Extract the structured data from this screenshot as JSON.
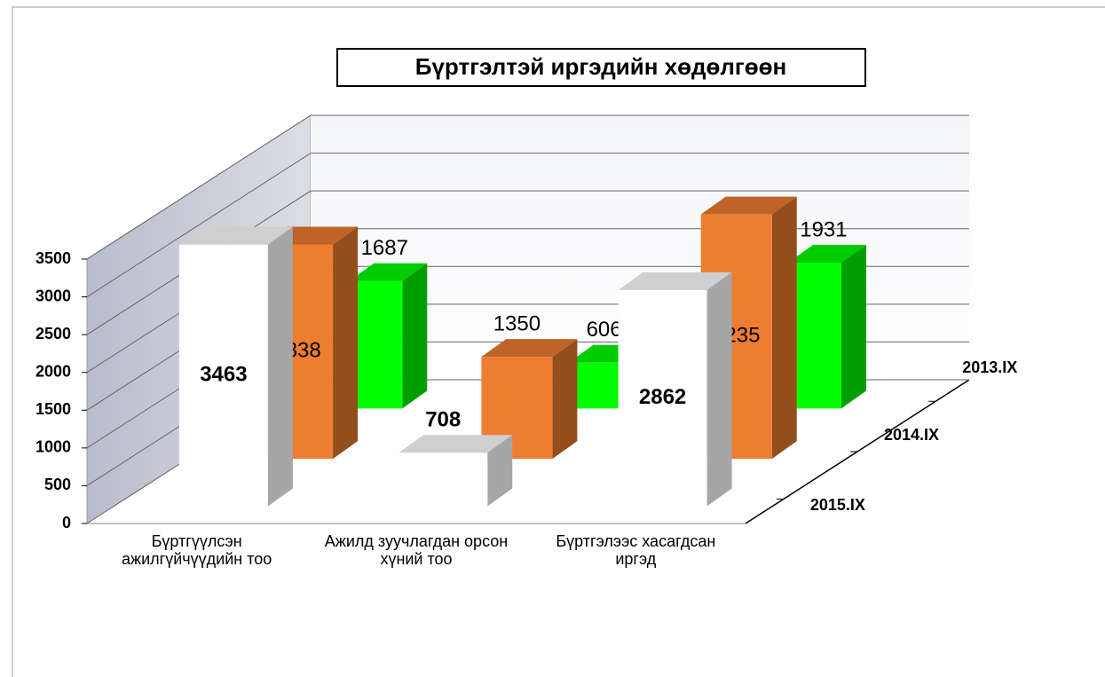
{
  "chart_data": {
    "type": "bar3d",
    "title": "Бүртгэлтэй иргэдийн хөдөлгөөн",
    "categories": [
      "Бүртгүүлсэн ажилгүйчүүдийн тоо",
      "Ажилд зуучлагдан орсон хүний тоо",
      "Бүртгэлээс хасагдсан иргэд"
    ],
    "series": [
      {
        "name": "2015.IX",
        "color": "#ffffff",
        "values": [
          3463,
          708,
          2862
        ]
      },
      {
        "name": "2014.IX",
        "color": "#ed7d31",
        "values": [
          2838,
          1350,
          3235
        ]
      },
      {
        "name": "2013.IX",
        "color": "#00ff00",
        "values": [
          1687,
          606,
          1931
        ]
      }
    ],
    "ylim": [
      0,
      3500
    ],
    "yticks": [
      0,
      500,
      1000,
      1500,
      2000,
      2500,
      3000,
      3500
    ],
    "grid": true
  }
}
